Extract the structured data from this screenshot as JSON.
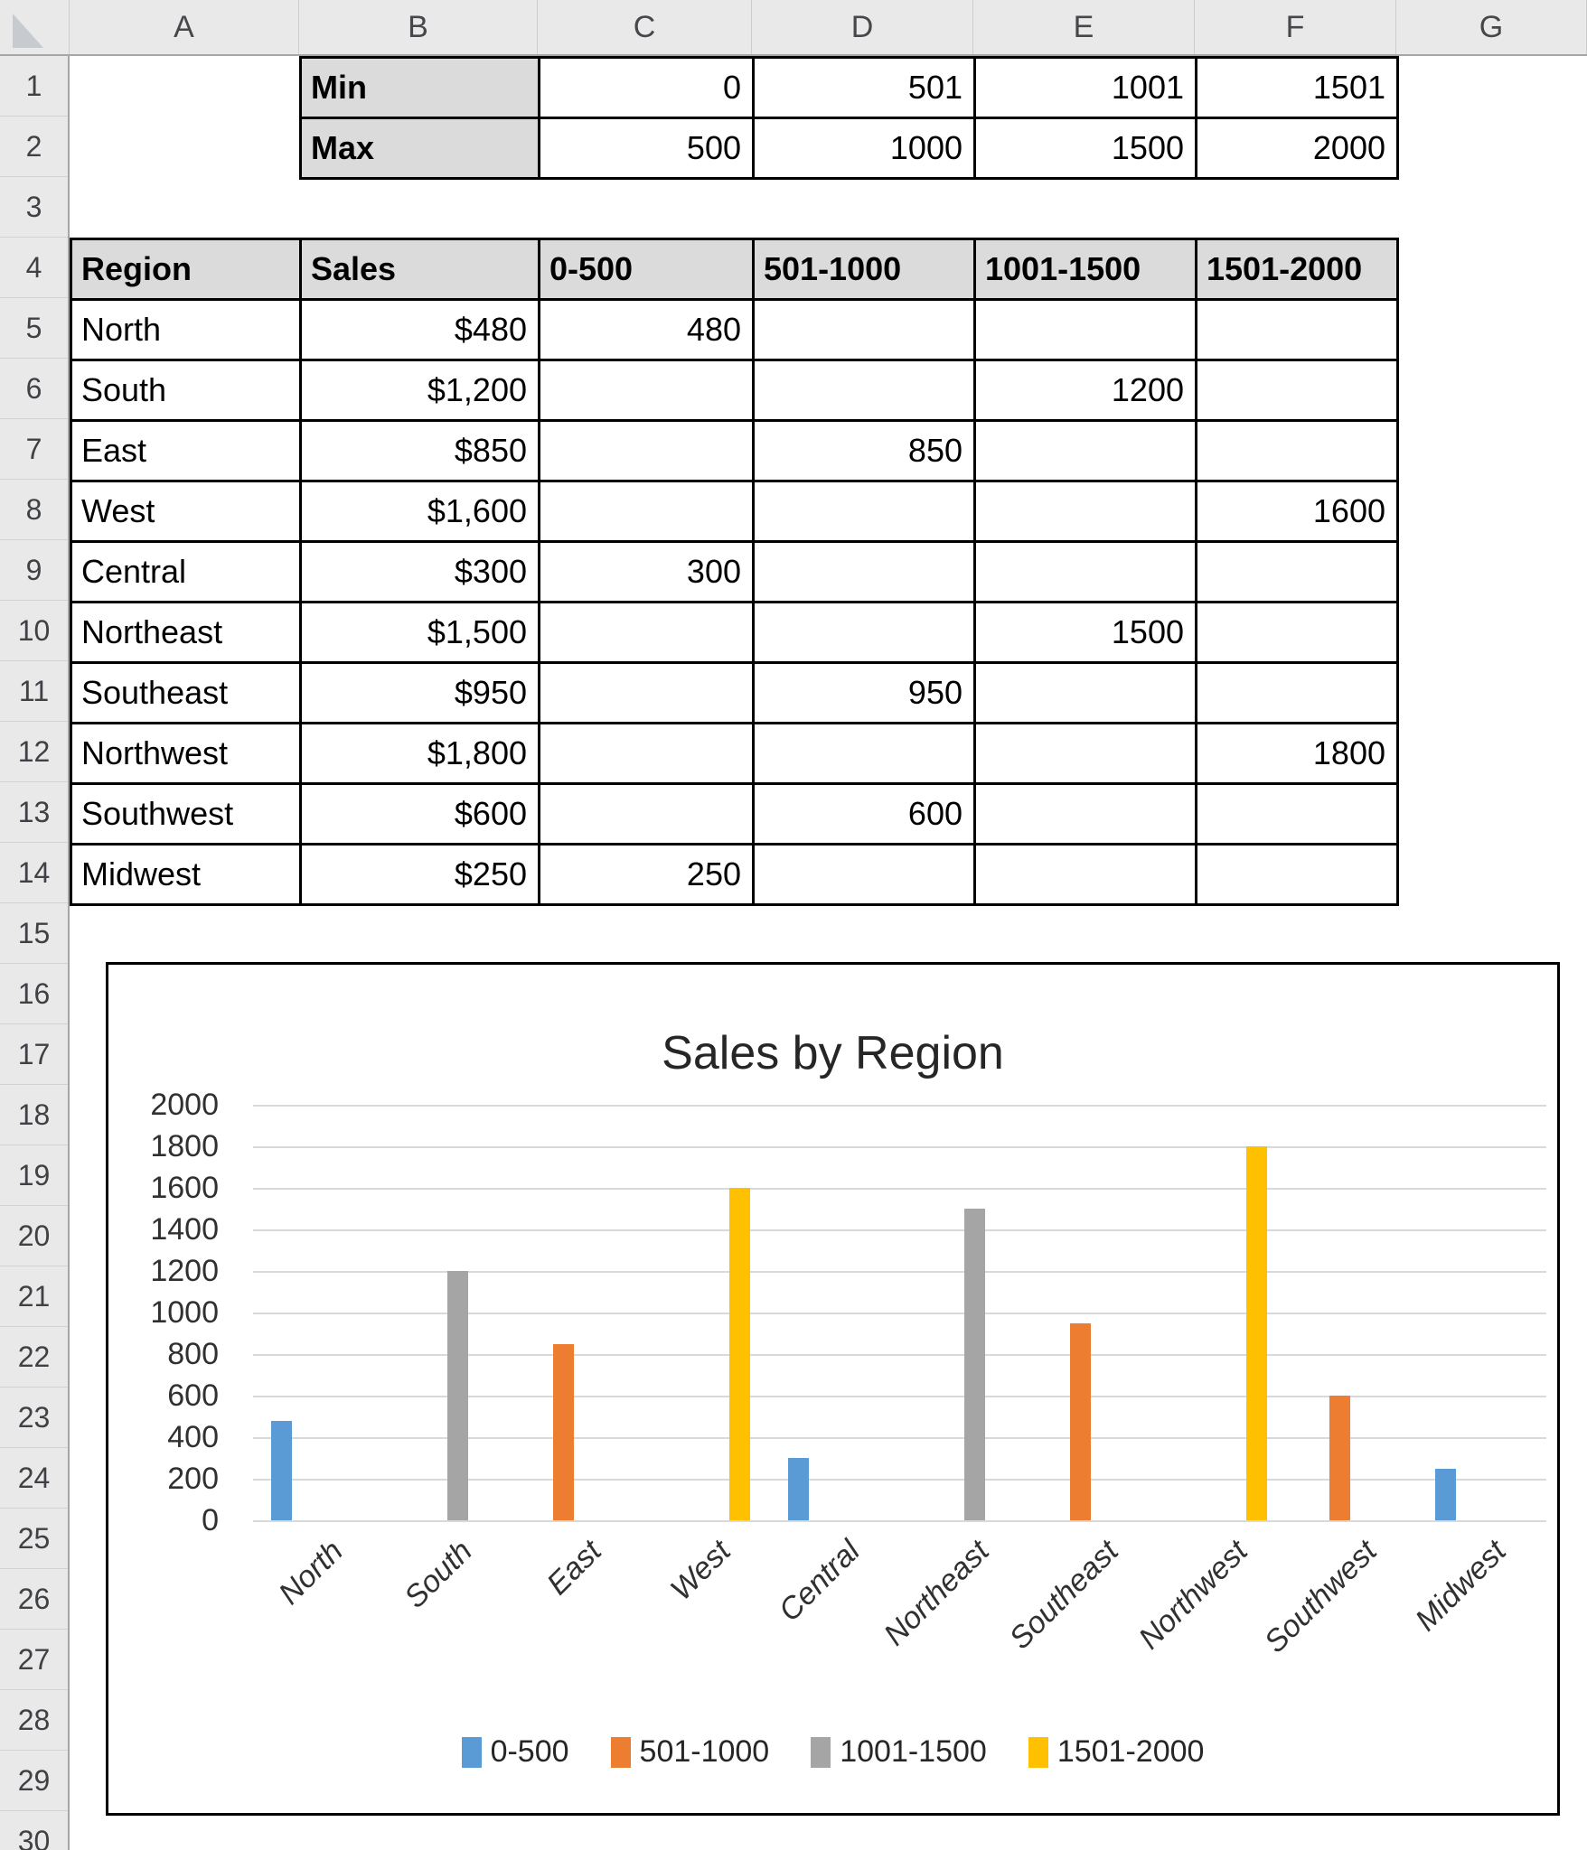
{
  "sheet": {
    "column_headers": [
      "A",
      "B",
      "C",
      "D",
      "E",
      "F",
      "G"
    ],
    "visible_row_count": 30
  },
  "minmax_table": {
    "rows": [
      {
        "label": "Min",
        "values": [
          "0",
          "501",
          "1001",
          "1501"
        ]
      },
      {
        "label": "Max",
        "values": [
          "500",
          "1000",
          "1500",
          "2000"
        ]
      }
    ]
  },
  "main_table": {
    "headers": [
      "Region",
      "Sales",
      "0-500",
      "501-1000",
      "1001-1500",
      "1501-2000"
    ],
    "rows": [
      {
        "region": "North",
        "sales": "$480",
        "buckets": [
          "480",
          "",
          "",
          ""
        ]
      },
      {
        "region": "South",
        "sales": "$1,200",
        "buckets": [
          "",
          "",
          "1200",
          ""
        ]
      },
      {
        "region": "East",
        "sales": "$850",
        "buckets": [
          "",
          "850",
          "",
          ""
        ]
      },
      {
        "region": "West",
        "sales": "$1,600",
        "buckets": [
          "",
          "",
          "",
          "1600"
        ]
      },
      {
        "region": "Central",
        "sales": "$300",
        "buckets": [
          "300",
          "",
          "",
          ""
        ]
      },
      {
        "region": "Northeast",
        "sales": "$1,500",
        "buckets": [
          "",
          "",
          "1500",
          ""
        ]
      },
      {
        "region": "Southeast",
        "sales": "$950",
        "buckets": [
          "",
          "950",
          "",
          ""
        ]
      },
      {
        "region": "Northwest",
        "sales": "$1,800",
        "buckets": [
          "",
          "",
          "",
          "1800"
        ]
      },
      {
        "region": "Southwest",
        "sales": "$600",
        "buckets": [
          "",
          "600",
          "",
          ""
        ]
      },
      {
        "region": "Midwest",
        "sales": "$250",
        "buckets": [
          "250",
          "",
          "",
          ""
        ]
      }
    ]
  },
  "chart_data": {
    "type": "bar",
    "title": "Sales by Region",
    "categories": [
      "North",
      "South",
      "East",
      "West",
      "Central",
      "Northeast",
      "Southeast",
      "Northwest",
      "Southwest",
      "Midwest"
    ],
    "series": [
      {
        "name": "0-500",
        "color": "#5B9BD5",
        "values": [
          480,
          null,
          null,
          null,
          300,
          null,
          null,
          null,
          null,
          250
        ]
      },
      {
        "name": "501-1000",
        "color": "#ED7D31",
        "values": [
          null,
          null,
          850,
          null,
          null,
          null,
          950,
          null,
          600,
          null
        ]
      },
      {
        "name": "1001-1500",
        "color": "#A5A5A5",
        "values": [
          null,
          1200,
          null,
          null,
          null,
          1500,
          null,
          null,
          null,
          null
        ]
      },
      {
        "name": "1501-2000",
        "color": "#FFC000",
        "values": [
          null,
          null,
          null,
          1600,
          null,
          null,
          null,
          1800,
          null,
          null
        ]
      }
    ],
    "ylim": [
      0,
      2000
    ],
    "ytick_step": 200,
    "grid": true,
    "legend_position": "bottom",
    "gridline_color": "#D9D9D9"
  }
}
